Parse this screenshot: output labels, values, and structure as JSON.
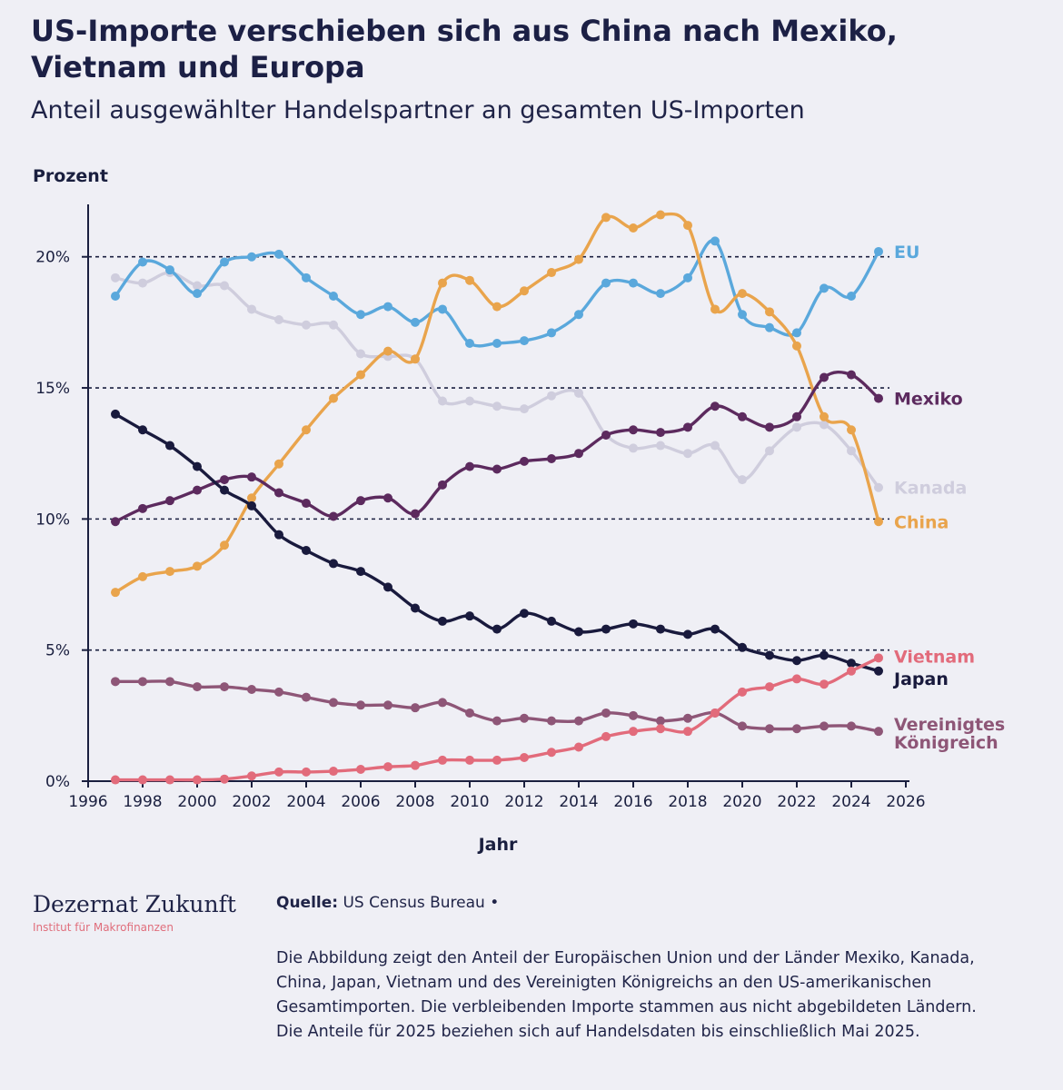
{
  "header": {
    "title": "US-Importe verschieben sich aus China nach Mexiko, Vietnam und Europa",
    "subtitle": "Anteil ausgewählter Handelspartner an gesamten US-Importen"
  },
  "chart_data": {
    "type": "line",
    "ylabel": "Prozent",
    "xlabel": "Jahr",
    "xlim": [
      1996,
      2026
    ],
    "ylim": [
      0,
      22
    ],
    "xticks": [
      1996,
      1998,
      2000,
      2002,
      2004,
      2006,
      2008,
      2010,
      2012,
      2014,
      2016,
      2018,
      2020,
      2022,
      2024,
      2026
    ],
    "yticks": [
      0,
      5,
      10,
      15,
      20
    ],
    "ytick_labels": [
      "0%",
      "5%",
      "10%",
      "15%",
      "20%"
    ],
    "dashed_gridlines": [
      5,
      10,
      15,
      20
    ],
    "legend": "direct labels at line ends",
    "x": [
      1997,
      1998,
      1999,
      2000,
      2001,
      2002,
      2003,
      2004,
      2005,
      2006,
      2007,
      2008,
      2009,
      2010,
      2011,
      2012,
      2013,
      2014,
      2015,
      2016,
      2017,
      2018,
      2019,
      2020,
      2021,
      2022,
      2023,
      2024,
      2025
    ],
    "series": [
      {
        "name": "Kanada",
        "color": "#cfcddd",
        "label_lines": [
          "Kanada"
        ],
        "values": [
          19.2,
          19.0,
          19.4,
          18.9,
          18.9,
          18.0,
          17.6,
          17.4,
          17.4,
          16.3,
          16.2,
          16.1,
          14.5,
          14.5,
          14.3,
          14.2,
          14.7,
          14.8,
          13.2,
          12.7,
          12.8,
          12.5,
          12.8,
          11.5,
          12.6,
          13.5,
          13.6,
          12.6,
          11.2
        ]
      },
      {
        "name": "EU",
        "color": "#5aa8dc",
        "label_lines": [
          "EU"
        ],
        "values": [
          18.5,
          19.8,
          19.5,
          18.6,
          19.8,
          20.0,
          20.1,
          19.2,
          18.5,
          17.8,
          18.1,
          17.5,
          18.0,
          16.7,
          16.7,
          16.8,
          17.1,
          17.8,
          19.0,
          19.0,
          18.6,
          19.2,
          20.6,
          17.8,
          17.3,
          17.1,
          18.8,
          18.5,
          20.2
        ]
      },
      {
        "name": "China",
        "color": "#e9a44c",
        "label_lines": [
          "China"
        ],
        "values": [
          7.2,
          7.8,
          8.0,
          8.2,
          9.0,
          10.8,
          12.1,
          13.4,
          14.6,
          15.5,
          16.4,
          16.1,
          19.0,
          19.1,
          18.1,
          18.7,
          19.4,
          19.9,
          21.5,
          21.1,
          21.6,
          21.2,
          18.0,
          18.6,
          17.9,
          16.6,
          13.9,
          13.4,
          9.9
        ]
      },
      {
        "name": "Mexiko",
        "color": "#5c2a5e",
        "label_lines": [
          "Mexiko"
        ],
        "values": [
          9.9,
          10.4,
          10.7,
          11.1,
          11.5,
          11.6,
          11.0,
          10.6,
          10.1,
          10.7,
          10.8,
          10.2,
          11.3,
          12.0,
          11.9,
          12.2,
          12.3,
          12.5,
          13.2,
          13.4,
          13.3,
          13.5,
          14.3,
          13.9,
          13.5,
          13.9,
          15.4,
          15.5,
          14.6
        ]
      },
      {
        "name": "Japan",
        "color": "#191a3d",
        "label_lines": [
          "Japan"
        ],
        "values": [
          14.0,
          13.4,
          12.8,
          12.0,
          11.1,
          10.5,
          9.4,
          8.8,
          8.3,
          8.0,
          7.4,
          6.6,
          6.1,
          6.3,
          5.8,
          6.4,
          6.1,
          5.7,
          5.8,
          6.0,
          5.8,
          5.6,
          5.8,
          5.1,
          4.8,
          4.6,
          4.8,
          4.5,
          4.2
        ]
      },
      {
        "name": "Vereinigtes Königreich",
        "color": "#8e5677",
        "label_lines": [
          "Vereinigtes",
          "Königreich"
        ],
        "values": [
          3.8,
          3.8,
          3.8,
          3.6,
          3.6,
          3.5,
          3.4,
          3.2,
          3.0,
          2.9,
          2.9,
          2.8,
          3.0,
          2.6,
          2.3,
          2.4,
          2.3,
          2.3,
          2.6,
          2.5,
          2.3,
          2.4,
          2.6,
          2.1,
          2.0,
          2.0,
          2.1,
          2.1,
          1.9
        ]
      },
      {
        "name": "Vietnam",
        "color": "#e26b7b",
        "label_lines": [
          "Vietnam"
        ],
        "values": [
          0.05,
          0.05,
          0.05,
          0.05,
          0.08,
          0.2,
          0.35,
          0.35,
          0.38,
          0.45,
          0.55,
          0.6,
          0.8,
          0.8,
          0.8,
          0.9,
          1.1,
          1.3,
          1.7,
          1.9,
          2.0,
          1.9,
          2.6,
          3.4,
          3.6,
          3.9,
          3.7,
          4.2,
          4.7
        ]
      }
    ]
  },
  "footer": {
    "logo_name": "Dezernat Zukunft",
    "logo_subtitle": "Institut für Makrofinanzen",
    "source_label": "Quelle:",
    "source_text": "US Census Bureau •",
    "description": "Die Abbildung zeigt den Anteil der Europäischen Union und der Länder Mexiko, Kanada, China, Japan, Vietnam und des Vereinigten Königreichs an den US-amerikanischen Gesamtimporten. Die verbleibenden Importe stammen aus nicht abgebildeten Ländern. Die Anteile für 2025 beziehen sich auf Handelsdaten bis einschließlich Mai 2025."
  }
}
